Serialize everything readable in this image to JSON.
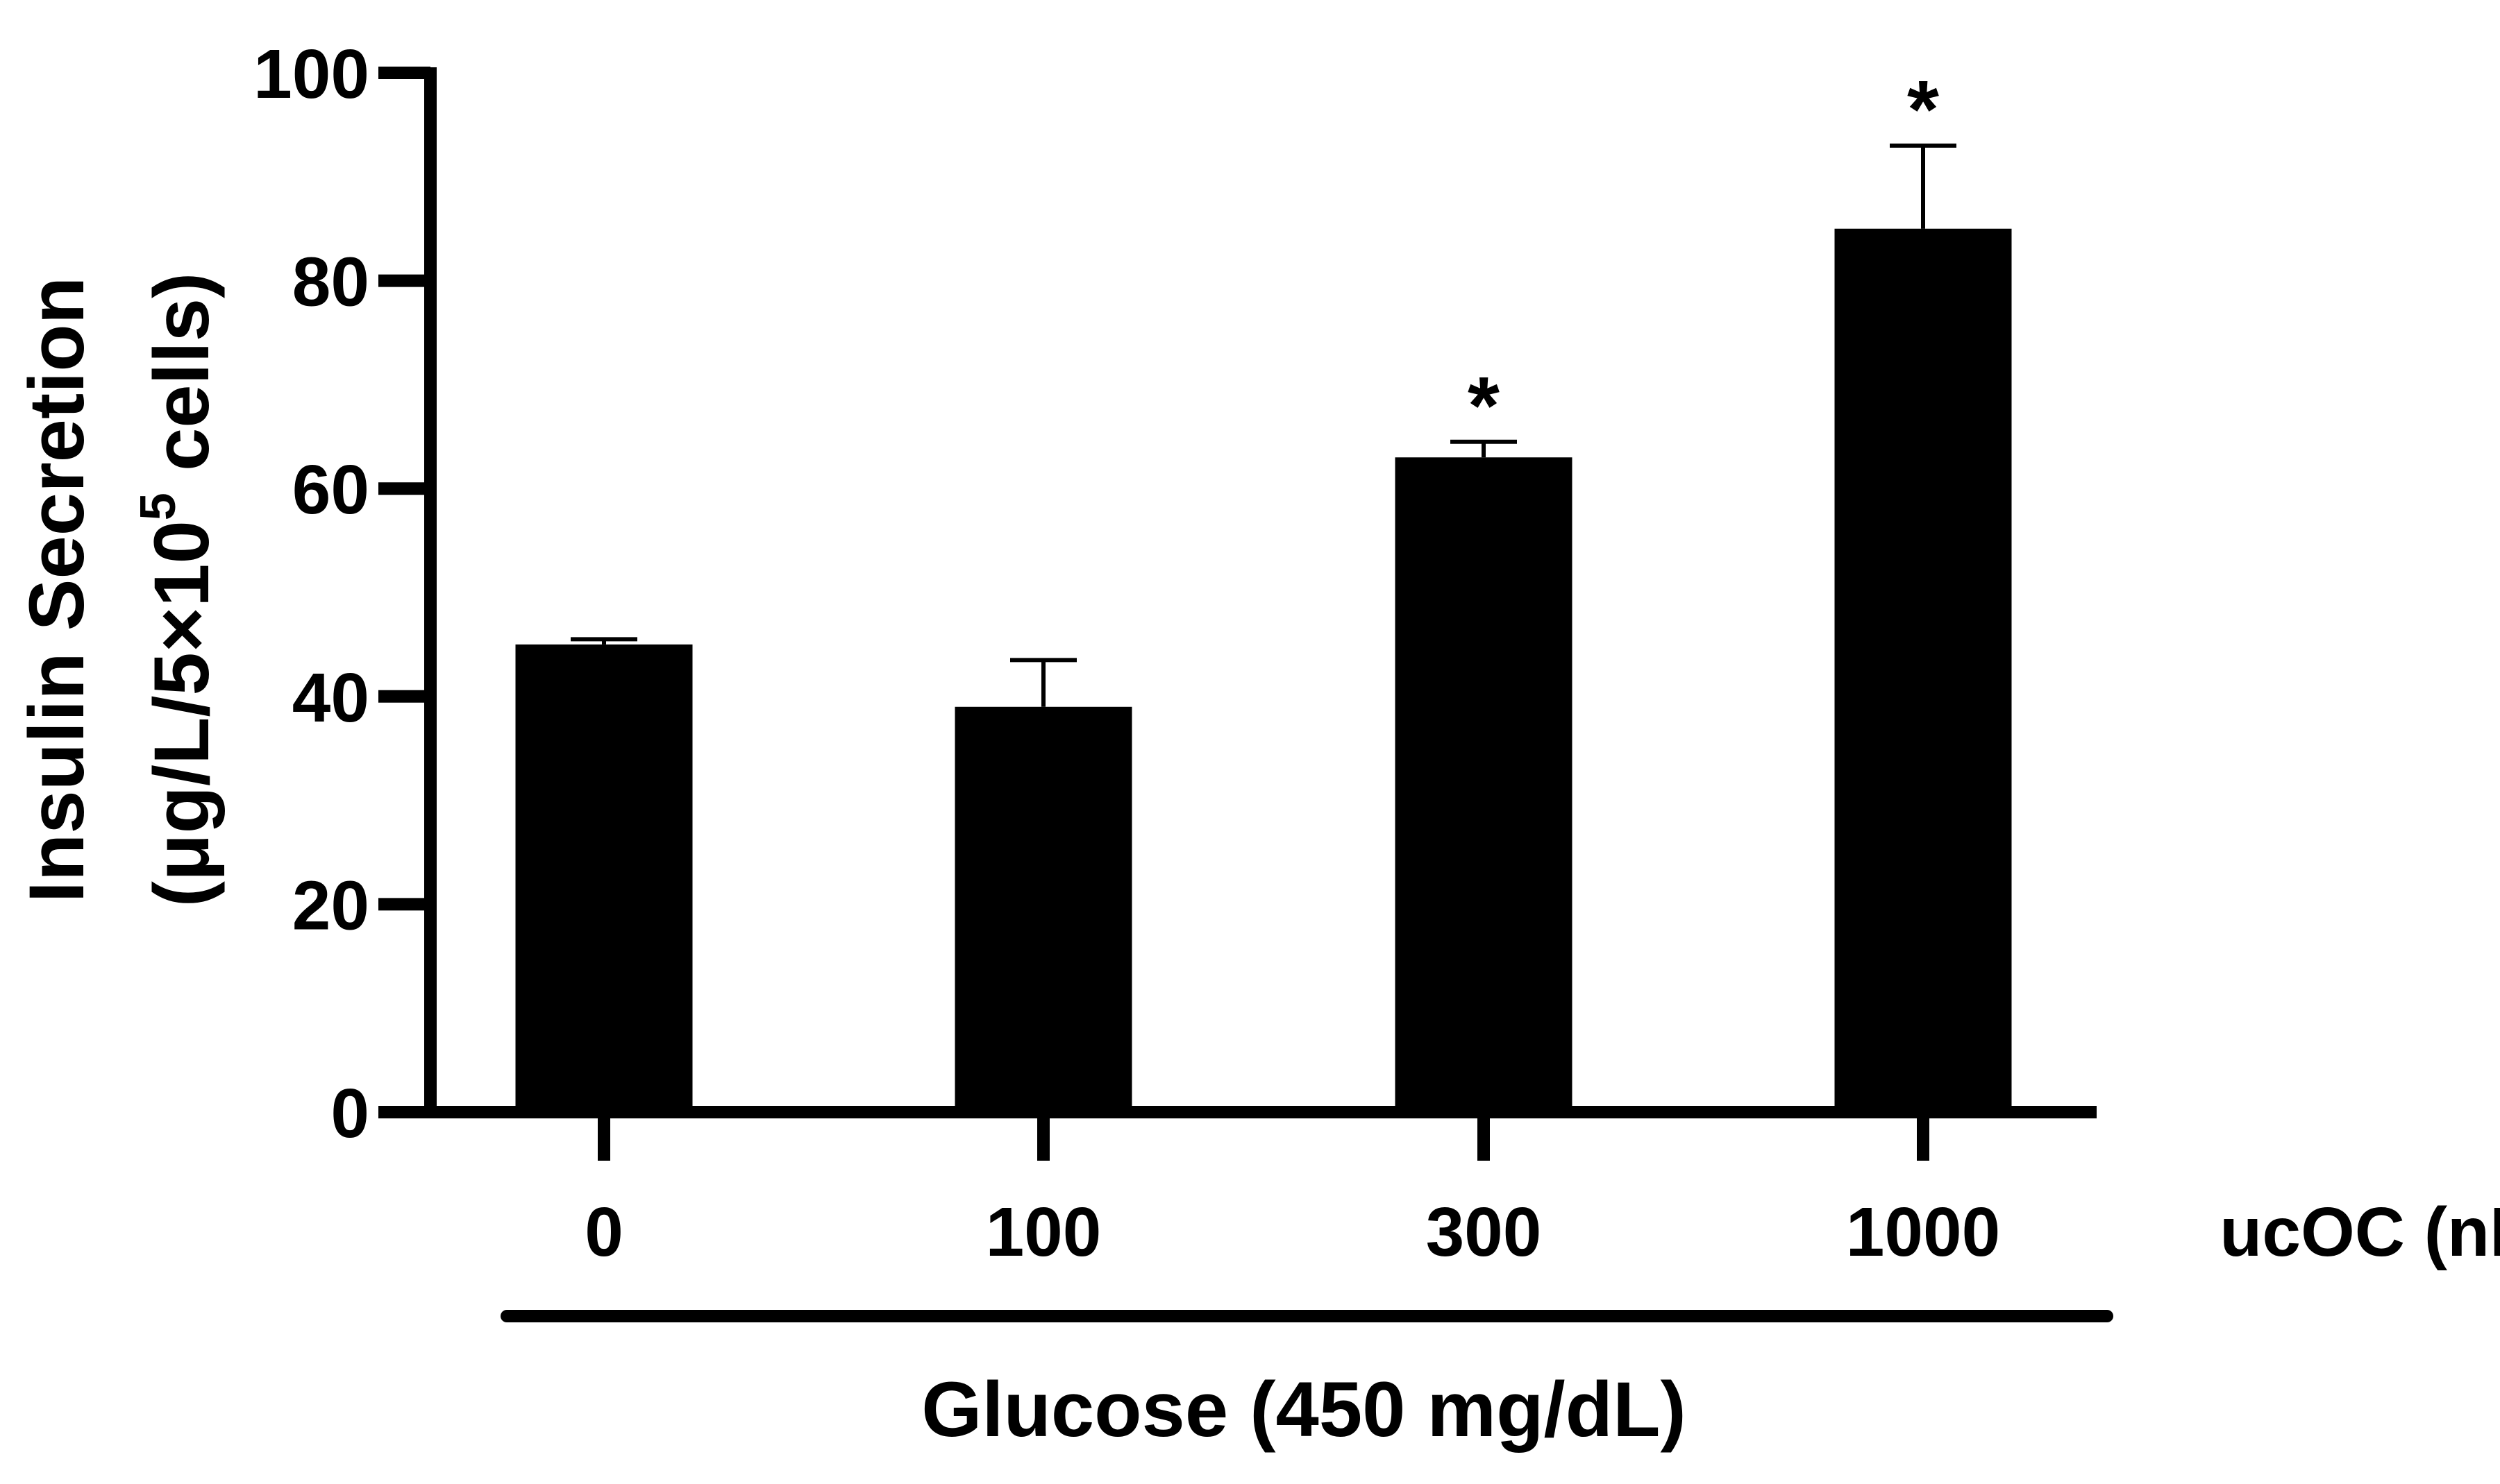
{
  "chart_data": {
    "type": "bar",
    "ylabel_line1": "Insulin Secretion",
    "ylabel_line2_prefix": "(μg/L/5×10",
    "ylabel_line2_sup": "5",
    "ylabel_line2_suffix": " cells)",
    "xlabel": "ucOC (nM)",
    "group_label": "Glucose (450 mg/dL)",
    "categories": [
      "0",
      "100",
      "300",
      "1000"
    ],
    "values": [
      45,
      39,
      63,
      85
    ],
    "error_upper": [
      45.5,
      43.5,
      64.5,
      93
    ],
    "significance": [
      "",
      "",
      "*",
      "*"
    ],
    "ylim": [
      0,
      100
    ],
    "yticks": [
      0,
      20,
      40,
      60,
      80,
      100
    ],
    "colors": {
      "bar": "#000000",
      "axis": "#000000",
      "background": "#ffffff"
    }
  }
}
